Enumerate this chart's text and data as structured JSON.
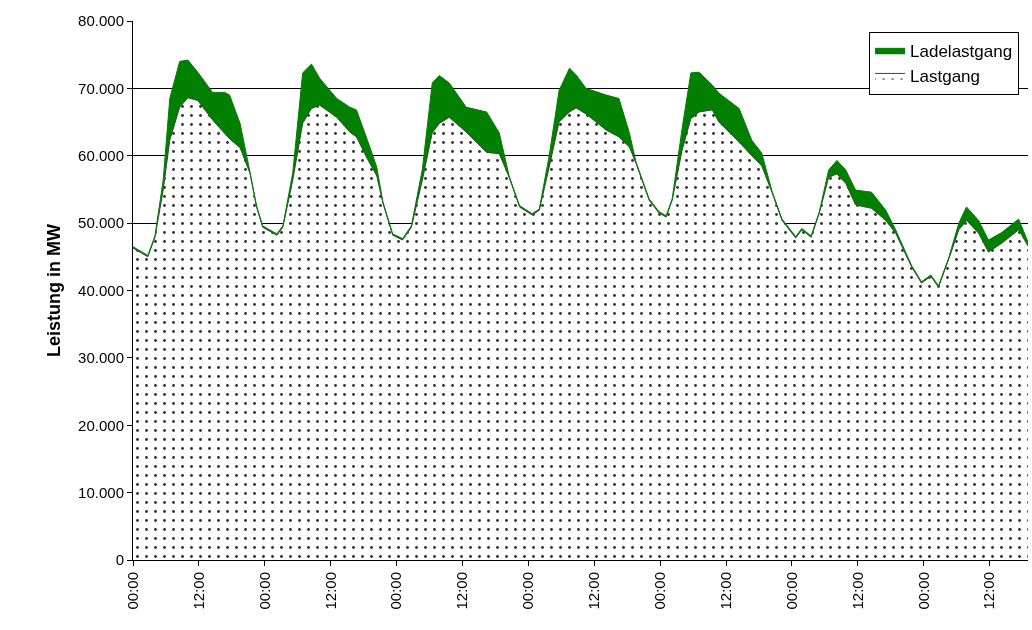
{
  "chart_data": {
    "type": "area",
    "stacked": true,
    "ylabel": "Leistung in MW",
    "x": [
      "--01-01T00:00",
      "--01-01T02:42",
      "--01-01T04:00",
      "--01-01T05:30",
      "--01-01T06:42",
      "--01-01T08:30",
      "--01-01T10:00",
      "--01-01T11:48",
      "--01-01T14:30",
      "--01-01T16:42",
      "--01-01T17:36",
      "--01-01T19:30",
      "--01-01T21:18",
      "--01-01T22:30",
      "--01-01T23:36",
      "--01-02T02:12",
      "--01-02T03:18",
      "--01-02T05:06",
      "--01-02T06:54",
      "--01-02T08:30",
      "--01-02T10:00",
      "--01-02T13:06",
      "--01-02T15:30",
      "--01-02T16:42",
      "--01-02T18:42",
      "--01-02T20:24",
      "--01-02T21:30",
      "--01-02T23:18",
      "--01-03T01:06",
      "--01-03T02:42",
      "--01-03T04:42",
      "--01-03T06:30",
      "--01-03T07:48",
      "--01-03T09:36",
      "--01-03T12:42",
      "--01-03T16:24",
      "--01-03T18:42",
      "--01-03T20:30",
      "--01-03T22:24",
      "--01-04T00:42",
      "--01-04T02:00",
      "--01-04T03:48",
      "--01-04T05:36",
      "--01-04T07:30",
      "--01-04T08:42",
      "--01-04T10:30",
      "--01-04T14:12",
      "--01-04T16:30",
      "--01-04T18:24",
      "--01-04T19:36",
      "--01-04T22:00",
      "--01-04T23:48",
      "--01-05T01:06",
      "--01-05T02:12",
      "--01-05T04:00",
      "--01-05T05:36",
      "--01-05T07:06",
      "--01-05T09:30",
      "--01-05T10:42",
      "--01-05T14:24",
      "--01-05T16:42",
      "--01-05T18:30",
      "--01-05T20:24",
      "--01-05T22:12",
      "--01-06T00:42",
      "--01-06T01:48",
      "--01-06T03:30",
      "--01-06T05:00",
      "--01-06T06:42",
      "--01-06T08:12",
      "--01-06T09:48",
      "--01-06T11:36",
      "--01-06T14:30",
      "--01-06T17:06",
      "--01-06T18:54",
      "--01-06T21:48",
      "--01-06T23:36",
      "--01-07T01:18",
      "--01-07T02:42",
      "--01-07T04:30",
      "--01-07T06:24",
      "--01-07T07:48",
      "--01-07T10:00",
      "--01-07T11:48",
      "--01-07T14:12",
      "--01-07T17:18",
      "--01-07T19:00"
    ],
    "series": [
      {
        "name": "Lastgang",
        "color": "#333333",
        "values": [
          46300,
          45000,
          47900,
          54900,
          62300,
          67200,
          68600,
          68200,
          65300,
          63300,
          62500,
          61200,
          57400,
          52400,
          49400,
          48200,
          49400,
          56400,
          64800,
          67000,
          67500,
          65700,
          63500,
          62800,
          59500,
          57000,
          53000,
          48200,
          47500,
          49400,
          56400,
          63400,
          64800,
          65700,
          63500,
          60500,
          60300,
          56800,
          52400,
          51200,
          51900,
          58300,
          65000,
          66500,
          67100,
          66200,
          63800,
          62800,
          61300,
          58900,
          53400,
          51500,
          50900,
          53400,
          60800,
          65500,
          66500,
          66800,
          65000,
          62000,
          60000,
          58500,
          54500,
          50400,
          47800,
          49000,
          47900,
          51500,
          56800,
          57300,
          55900,
          52700,
          52200,
          50400,
          48500,
          43500,
          41100,
          42100,
          40500,
          44500,
          49000,
          50400,
          48500,
          45700,
          47000,
          49000,
          46600
        ]
      },
      {
        "name": "Ladelastgang",
        "color": "#007f00",
        "values": [
          200,
          200,
          200,
          1500,
          6200,
          6800,
          5600,
          4200,
          4100,
          6100,
          6500,
          3600,
          200,
          200,
          200,
          200,
          200,
          1100,
          7500,
          6600,
          4000,
          2800,
          3700,
          4000,
          2800,
          1300,
          200,
          200,
          200,
          200,
          1600,
          7400,
          7100,
          5100,
          3700,
          6000,
          3100,
          200,
          200,
          200,
          200,
          1700,
          4700,
          6500,
          4900,
          3800,
          5200,
          5700,
          2100,
          200,
          200,
          200,
          200,
          200,
          3200,
          6800,
          5900,
          3700,
          4300,
          5000,
          2300,
          1900,
          200,
          200,
          200,
          200,
          200,
          200,
          1100,
          2000,
          2000,
          2200,
          2400,
          1500,
          500,
          200,
          200,
          200,
          200,
          200,
          1000,
          2000,
          1900,
          1800,
          1600,
          1600,
          600
        ]
      }
    ],
    "xlim": [
      "--01-01T00:00",
      "--01-07T19:00"
    ],
    "xticks": [
      {
        "value": "--01-01T00:00",
        "label": "00:00"
      },
      {
        "value": "--01-01T12:00",
        "label": "12:00"
      },
      {
        "value": "--01-02T00:00",
        "label": "00:00"
      },
      {
        "value": "--01-02T12:00",
        "label": "12:00"
      },
      {
        "value": "--01-03T00:00",
        "label": "00:00"
      },
      {
        "value": "--01-03T12:00",
        "label": "12:00"
      },
      {
        "value": "--01-04T00:00",
        "label": "00:00"
      },
      {
        "value": "--01-04T12:00",
        "label": "12:00"
      },
      {
        "value": "--01-05T00:00",
        "label": "00:00"
      },
      {
        "value": "--01-05T12:00",
        "label": "12:00"
      },
      {
        "value": "--01-06T00:00",
        "label": "00:00"
      },
      {
        "value": "--01-06T12:00",
        "label": "12:00"
      },
      {
        "value": "--01-07T00:00",
        "label": "00:00"
      },
      {
        "value": "--01-07T12:00",
        "label": "12:00"
      }
    ],
    "ylim": [
      0,
      80000
    ],
    "yticks": [
      0,
      {
        "value": 10000,
        "label": "10.000"
      },
      {
        "value": 20000,
        "label": "20.000"
      },
      {
        "value": 30000,
        "label": "30.000"
      },
      {
        "value": 40000,
        "label": "40.000"
      },
      {
        "value": 50000,
        "label": "50.000"
      },
      {
        "value": 60000,
        "label": "60.000"
      },
      {
        "value": 70000,
        "label": "70.000"
      },
      {
        "value": 80000,
        "label": "80.000"
      }
    ],
    "grid": "y",
    "legend": "top right"
  }
}
